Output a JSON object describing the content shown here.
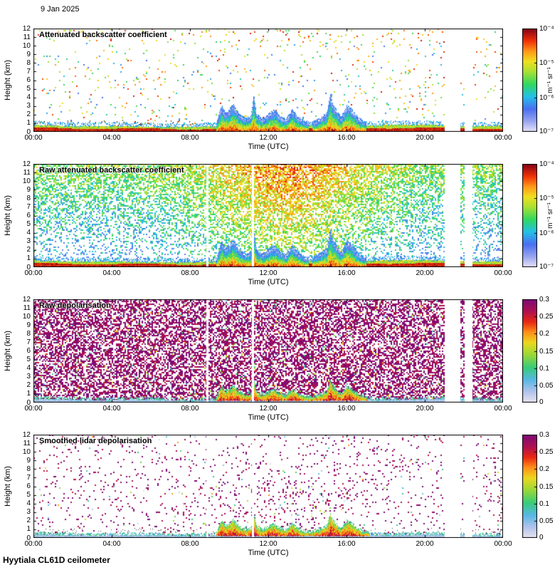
{
  "page": {
    "date_label": "9 Jan 2025",
    "footer": "Hyytiala CL61D ceilometer",
    "background": "#ffffff"
  },
  "render": {
    "colormap_backscatter": [
      [
        0.0,
        "#e8e4f8"
      ],
      [
        0.1,
        "#9aa6f0"
      ],
      [
        0.22,
        "#4a6ff0"
      ],
      [
        0.34,
        "#24c0e8"
      ],
      [
        0.46,
        "#30d860"
      ],
      [
        0.58,
        "#a8e034"
      ],
      [
        0.68,
        "#f0e020"
      ],
      [
        0.78,
        "#ff9818"
      ],
      [
        0.88,
        "#f03008"
      ],
      [
        1.0,
        "#800018"
      ]
    ],
    "colormap_depol": [
      [
        0.0,
        "#e8e6f0"
      ],
      [
        0.1,
        "#b4c4ec"
      ],
      [
        0.22,
        "#58b8e4"
      ],
      [
        0.34,
        "#38cc78"
      ],
      [
        0.46,
        "#98d838"
      ],
      [
        0.58,
        "#ecd820"
      ],
      [
        0.68,
        "#ff9018"
      ],
      [
        0.78,
        "#e82810"
      ],
      [
        0.88,
        "#b01050"
      ],
      [
        1.0,
        "#7c0a78"
      ]
    ],
    "plume_top_km": [
      [
        0,
        0
      ],
      [
        9.2,
        0
      ],
      [
        9.4,
        1.2
      ],
      [
        9.6,
        2.9
      ],
      [
        9.8,
        2.0
      ],
      [
        10.0,
        2.4
      ],
      [
        10.2,
        3.1
      ],
      [
        10.5,
        1.8
      ],
      [
        10.8,
        1.3
      ],
      [
        11.1,
        1.5
      ],
      [
        11.25,
        3.9
      ],
      [
        11.4,
        1.6
      ],
      [
        11.7,
        1.2
      ],
      [
        12.0,
        1.7
      ],
      [
        12.3,
        2.1
      ],
      [
        12.6,
        1.4
      ],
      [
        12.9,
        1.1
      ],
      [
        13.2,
        2.3
      ],
      [
        13.5,
        1.5
      ],
      [
        13.8,
        1.0
      ],
      [
        14.2,
        0.9
      ],
      [
        14.6,
        1.4
      ],
      [
        15.0,
        2.2
      ],
      [
        15.15,
        4.6
      ],
      [
        15.3,
        3.2
      ],
      [
        15.5,
        2.4
      ],
      [
        15.7,
        1.5
      ],
      [
        16.0,
        2.9
      ],
      [
        16.2,
        2.6
      ],
      [
        16.5,
        1.6
      ],
      [
        16.8,
        1.0
      ],
      [
        17.2,
        0.7
      ],
      [
        17.6,
        0.3
      ],
      [
        18.0,
        0
      ],
      [
        24,
        0
      ]
    ],
    "data_gaps_hours": [
      [
        21.0,
        21.8
      ],
      [
        22.05,
        22.45
      ]
    ],
    "thin_gaps_hours": [
      [
        8.82,
        8.92
      ],
      [
        11.18,
        11.28
      ]
    ]
  },
  "chart_data": [
    {
      "type": "heatmap",
      "title": "Attenuated backscatter coefficient",
      "xlabel": "Time (UTC)",
      "ylabel": "Height (km)",
      "x_ticks": [
        "00:00",
        "04:00",
        "08:00",
        "12:00",
        "16:00",
        "20:00",
        "00:00"
      ],
      "y_ticks": [
        0,
        1,
        2,
        3,
        4,
        5,
        6,
        7,
        8,
        9,
        10,
        11,
        12
      ],
      "x_range_hours": [
        0,
        24
      ],
      "y_range_km": [
        0,
        12
      ],
      "colorbar": {
        "ticks": [
          "10⁻⁴",
          "10⁻⁵",
          "10⁻⁶",
          "10⁻⁷"
        ],
        "unit": "m⁻¹ sr⁻¹",
        "scale": "log",
        "min": "1e-7",
        "max": "1e-4",
        "colormap": "backscatter"
      },
      "features": [
        "strong surface aerosol layer 0-1 km all day",
        "boundary-layer aerosol/cloud plumes 09:30-17:00 reaching ~3-4.5 km",
        "sparse multicolour noise speckle aloft",
        "white data gaps ~21:00-22:30"
      ],
      "render": {
        "style": "bs_clean",
        "seed": 11,
        "plume_scale": 1.0,
        "use_thin_gaps": false,
        "dark_dots": 0.1
      }
    },
    {
      "type": "heatmap",
      "title": "Raw attenuated backscatter coefficient",
      "xlabel": "Time (UTC)",
      "ylabel": "Height (km)",
      "x_ticks": [
        "00:00",
        "04:00",
        "08:00",
        "12:00",
        "16:00",
        "20:00",
        "00:00"
      ],
      "y_ticks": [
        0,
        1,
        2,
        3,
        4,
        5,
        6,
        7,
        8,
        9,
        10,
        11,
        12
      ],
      "x_range_hours": [
        0,
        24
      ],
      "y_range_km": [
        0,
        12
      ],
      "colorbar": {
        "ticks": [
          "10⁻⁴",
          "10⁻⁵",
          "10⁻⁶",
          "10⁻⁷"
        ],
        "unit": "m⁻¹ sr⁻¹",
        "scale": "log",
        "min": "1e-7",
        "max": "1e-4",
        "colormap": "backscatter"
      },
      "features": [
        "dense blue/green range-noise increasing with height",
        "brighter green/yellow noise during daytime 09:00-17:00",
        "same surface layer and plumes as averaged panel",
        "thin gaps ~08:50 and ~11:15, wide gaps ~21:00-22:30"
      ],
      "render": {
        "style": "bs_raw",
        "seed": 22,
        "plume_scale": 1.0,
        "use_thin_gaps": true,
        "dark_dots": 0
      }
    },
    {
      "type": "heatmap",
      "title": "Raw depolarisation",
      "xlabel": "Time (UTC)",
      "ylabel": "Height (km)",
      "x_ticks": [
        "00:00",
        "04:00",
        "08:00",
        "12:00",
        "16:00",
        "20:00",
        "00:00"
      ],
      "y_ticks": [
        0,
        1,
        2,
        3,
        4,
        5,
        6,
        7,
        8,
        9,
        10,
        11,
        12
      ],
      "x_range_hours": [
        0,
        24
      ],
      "y_range_km": [
        0,
        12
      ],
      "colorbar": {
        "ticks": [
          "0.3",
          "0.25",
          "0.2",
          "0.15",
          "0.1",
          "0.05",
          "0"
        ],
        "unit": "",
        "scale": "linear",
        "min": "0",
        "max": "0.3",
        "colormap": "depol"
      },
      "features": [
        "dense saturated magenta/purple noise everywhere",
        "low-depolarisation grey band near surface 0-0.4 km",
        "high-depolarisation red/purple blobs 10:00-17:00 up to ~2.5 km",
        "thin gaps ~08:50 and ~11:15, wide gaps ~21:00-22:30"
      ],
      "render": {
        "style": "dp_raw",
        "seed": 33,
        "plume_scale": 0.6,
        "use_thin_gaps": true,
        "dark_dots": 0.12
      }
    },
    {
      "type": "heatmap",
      "title": "Smoothed lidar depolarisation",
      "xlabel": "Time (UTC)",
      "ylabel": "Height (km)",
      "x_ticks": [
        "00:00",
        "04:00",
        "08:00",
        "12:00",
        "16:00",
        "20:00",
        "00:00"
      ],
      "y_ticks": [
        0,
        1,
        2,
        3,
        4,
        5,
        6,
        7,
        8,
        9,
        10,
        11,
        12
      ],
      "x_range_hours": [
        0,
        24
      ],
      "y_range_km": [
        0,
        12
      ],
      "colorbar": {
        "ticks": [
          "0.3",
          "0.25",
          "0.2",
          "0.15",
          "0.1",
          "0.05",
          "0"
        ],
        "unit": "",
        "scale": "linear",
        "min": "0",
        "max": "0.3",
        "colormap": "depol"
      },
      "features": [
        "sparse magenta speckle, slightly denser midday at mid levels",
        "continuous grey-blue low-depolarisation band 0-0.5 km",
        "red/dark-purple depolarising blobs 10:00-17:00 up to ~3 km",
        "black speckle dots along top of surface band",
        "wide gaps ~21:00-22:30"
      ],
      "render": {
        "style": "dp_smooth",
        "seed": 44,
        "plume_scale": 0.65,
        "use_thin_gaps": true,
        "dark_dots": 0.3
      }
    }
  ]
}
